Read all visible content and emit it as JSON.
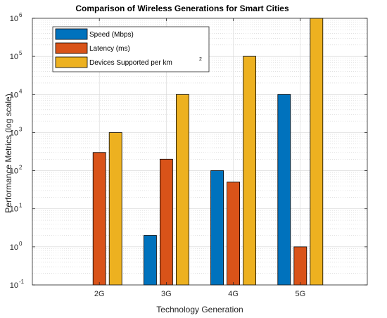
{
  "chart_data": {
    "type": "bar",
    "title": "Comparison of Wireless Generations for Smart Cities",
    "xlabel": "Technology Generation",
    "ylabel": "Performance Metrics (log scale)",
    "yscale": "log",
    "ylim": [
      0.1,
      1000000
    ],
    "grid": true,
    "legend_position": "top-left",
    "categories": [
      "2G",
      "3G",
      "4G",
      "5G"
    ],
    "series": [
      {
        "name": "Speed (Mbps)",
        "color": "#0072BD",
        "values": [
          0.1,
          2,
          100,
          10000
        ]
      },
      {
        "name": "Latency (ms)",
        "color": "#D95319",
        "values": [
          300,
          200,
          50,
          1
        ]
      },
      {
        "name": "Devices Supported per km",
        "name_superscript": "2",
        "color": "#EDB120",
        "values": [
          1000,
          10000,
          100000,
          1000000
        ]
      }
    ],
    "y_ticks": [
      {
        "base": "10",
        "exp": "-1",
        "value": 0.1
      },
      {
        "base": "10",
        "exp": "0",
        "value": 1
      },
      {
        "base": "10",
        "exp": "1",
        "value": 10
      },
      {
        "base": "10",
        "exp": "2",
        "value": 100
      },
      {
        "base": "10",
        "exp": "3",
        "value": 1000
      },
      {
        "base": "10",
        "exp": "4",
        "value": 10000
      },
      {
        "base": "10",
        "exp": "5",
        "value": 100000
      },
      {
        "base": "10",
        "exp": "6",
        "value": 1000000
      }
    ]
  }
}
